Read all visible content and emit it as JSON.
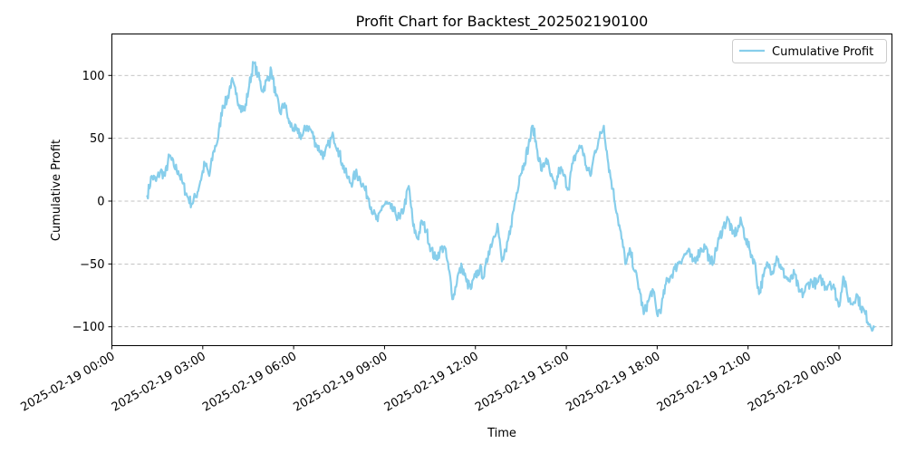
{
  "chart_data": {
    "type": "line",
    "title": "Profit Chart for Backtest_202502190100",
    "xlabel": "Time",
    "ylabel": "Cumulative Profit",
    "x_start": "2025-02-19 01:10",
    "x_end": "2025-02-20 01:10",
    "xlim": [
      "2025-02-19 00:00",
      "2025-02-20 01:45"
    ],
    "ylim": [
      -115,
      133
    ],
    "x_ticks": [
      "2025-02-19 00:00",
      "2025-02-19 03:00",
      "2025-02-19 06:00",
      "2025-02-19 09:00",
      "2025-02-19 12:00",
      "2025-02-19 15:00",
      "2025-02-19 18:00",
      "2025-02-19 21:00",
      "2025-02-20 00:00"
    ],
    "y_ticks": [
      -100,
      -50,
      0,
      50,
      100
    ],
    "grid": "y-dashed",
    "legend": "top-right",
    "series": [
      {
        "name": "Cumulative Profit",
        "color": "#87ceeb",
        "values": [
          4,
          20,
          16,
          24,
          20,
          36,
          28,
          24,
          14,
          4,
          -2,
          4,
          16,
          30,
          20,
          40,
          50,
          76,
          80,
          96,
          85,
          76,
          72,
          92,
          110,
          100,
          88,
          96,
          104,
          84,
          70,
          78,
          62,
          58,
          54,
          52,
          60,
          56,
          46,
          40,
          36,
          46,
          52,
          42,
          30,
          20,
          14,
          22,
          18,
          10,
          2,
          -10,
          -16,
          -4,
          -2,
          -6,
          -10,
          -14,
          -4,
          12,
          -20,
          -30,
          -16,
          -24,
          -38,
          -46,
          -40,
          -36,
          -54,
          -78,
          -60,
          -52,
          -64,
          -70,
          -60,
          -54,
          -60,
          -40,
          -30,
          -18,
          -48,
          -40,
          -20,
          0,
          20,
          30,
          44,
          60,
          40,
          24,
          34,
          20,
          10,
          26,
          20,
          10,
          30,
          40,
          44,
          28,
          20,
          40,
          50,
          60,
          30,
          10,
          -10,
          -30,
          -50,
          -40,
          -56,
          -70,
          -90,
          -80,
          -70,
          -90,
          -84,
          -66,
          -60,
          -54,
          -48,
          -44,
          -40,
          -48,
          -44,
          -38,
          -36,
          -50,
          -44,
          -30,
          -20,
          -14,
          -26,
          -24,
          -16,
          -30,
          -40,
          -48,
          -74,
          -60,
          -50,
          -56,
          -44,
          -54,
          -60,
          -64,
          -58,
          -72,
          -74,
          -66,
          -64,
          -66,
          -62,
          -68,
          -64,
          -70,
          -84,
          -60,
          -76,
          -82,
          -74,
          -84,
          -90,
          -98,
          -100
        ]
      }
    ]
  }
}
